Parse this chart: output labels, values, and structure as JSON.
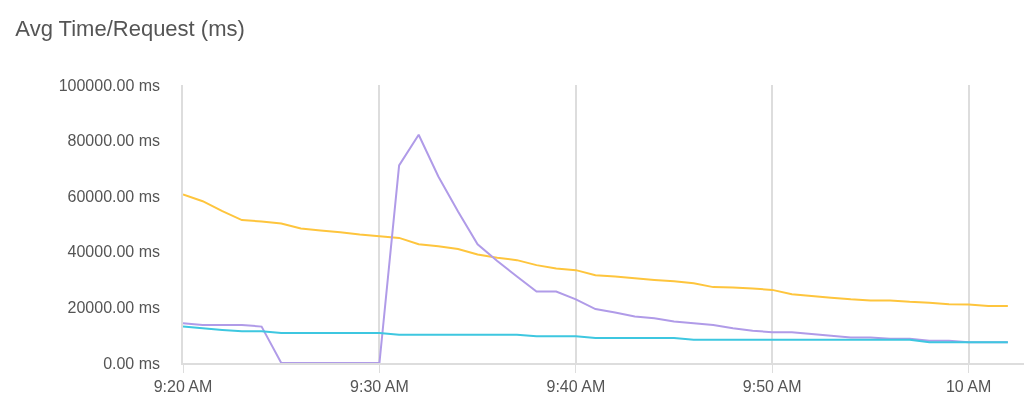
{
  "chart_data": {
    "type": "line",
    "title": "Avg Time/Request (ms)",
    "x": [
      9.3333,
      9.35,
      9.3667,
      9.3833,
      9.4,
      9.4167,
      9.4333,
      9.45,
      9.4667,
      9.4833,
      9.5,
      9.5167,
      9.5333,
      9.55,
      9.5667,
      9.5833,
      9.6,
      9.6167,
      9.6333,
      9.65,
      9.6667,
      9.6833,
      9.7,
      9.7167,
      9.7333,
      9.75,
      9.7667,
      9.7833,
      9.8,
      9.8167,
      9.8333,
      9.85,
      9.8667,
      9.8833,
      9.9,
      9.9167,
      9.9333,
      9.95,
      9.9667,
      9.9833,
      10.0,
      10.0167,
      10.0333
    ],
    "series": [
      {
        "color": "#fec53d",
        "values": [
          60600,
          58200,
          54600,
          51400,
          50900,
          50200,
          48400,
          47700,
          47000,
          46200,
          45600,
          45000,
          42700,
          42000,
          41000,
          39000,
          37900,
          37000,
          35200,
          34000,
          33400,
          31600,
          31100,
          30500,
          29900,
          29400,
          28700,
          27300,
          27200,
          26800,
          26300,
          24700,
          24100,
          23500,
          22900,
          22500,
          22500,
          22000,
          21700,
          21100,
          21000,
          20500,
          20500
        ]
      },
      {
        "color": "#b09be8",
        "values": [
          14300,
          13700,
          13700,
          13700,
          13100,
          0,
          0,
          0,
          0,
          0,
          0,
          71100,
          82100,
          67100,
          54500,
          42700,
          36700,
          31100,
          25700,
          25700,
          22900,
          19400,
          18200,
          16700,
          16100,
          14900,
          14300,
          13700,
          12500,
          11600,
          11100,
          11100,
          10400,
          9800,
          9200,
          9200,
          8700,
          8700,
          8000,
          8000,
          7500,
          7500,
          7500
        ]
      },
      {
        "color": "#3ec7e0",
        "values": [
          13100,
          12500,
          11900,
          11400,
          11400,
          10800,
          10800,
          10800,
          10800,
          10800,
          10800,
          10200,
          10200,
          10200,
          10200,
          10200,
          10200,
          10200,
          9600,
          9600,
          9600,
          9000,
          9000,
          9000,
          9000,
          9000,
          8400,
          8400,
          8400,
          8400,
          8400,
          8400,
          8400,
          8400,
          8400,
          8400,
          8400,
          8400,
          7500,
          7500,
          7500,
          7500,
          7500
        ]
      }
    ],
    "xlim": [
      9.3333,
      10.047
    ],
    "xticks": [
      {
        "value": 9.3333,
        "label": "9:20 AM"
      },
      {
        "value": 9.5,
        "label": "9:30 AM"
      },
      {
        "value": 9.6667,
        "label": "9:40 AM"
      },
      {
        "value": 9.8333,
        "label": "9:50 AM"
      },
      {
        "value": 10.0,
        "label": "10 AM"
      }
    ],
    "ylim": [
      0,
      100000
    ],
    "yticks": [
      {
        "value": 0,
        "label": "0.00 ms"
      },
      {
        "value": 20000,
        "label": "20000.00 ms"
      },
      {
        "value": 40000,
        "label": "40000.00 ms"
      },
      {
        "value": 60000,
        "label": "60000.00 ms"
      },
      {
        "value": 80000,
        "label": "80000.00 ms"
      },
      {
        "value": 100000,
        "label": "100000.00 ms"
      }
    ],
    "grid": "x",
    "marker": "none",
    "line_style": "solid"
  }
}
